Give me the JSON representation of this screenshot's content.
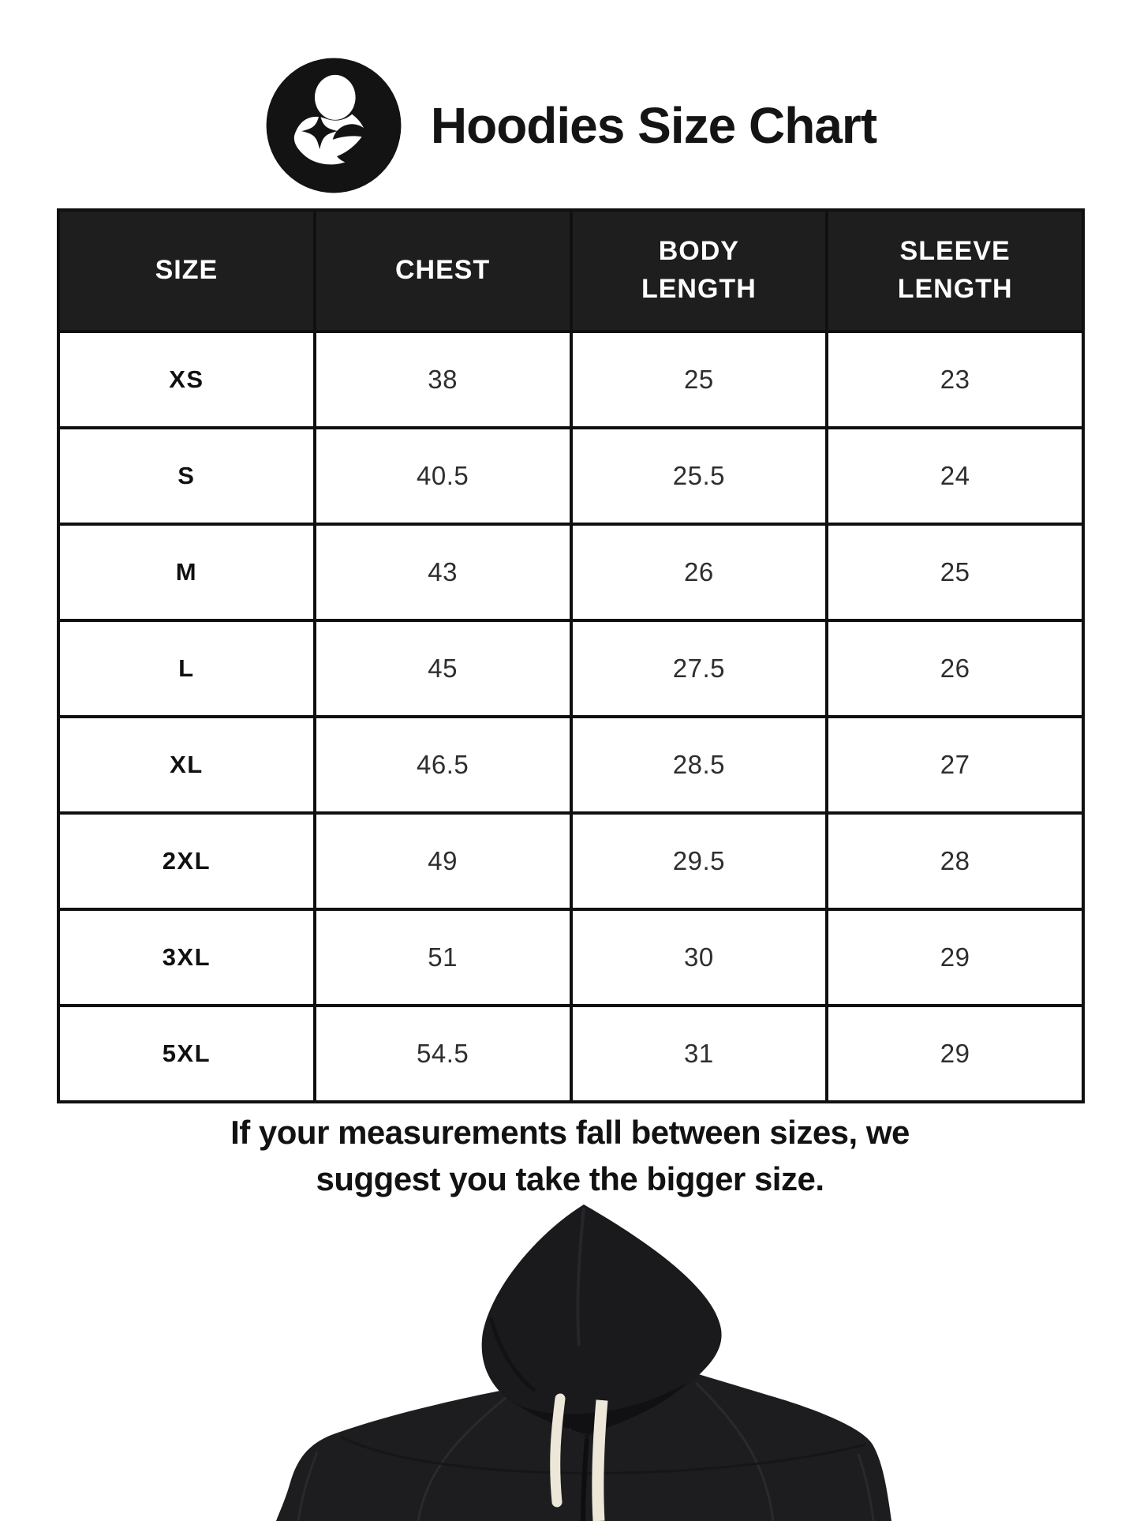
{
  "page": {
    "background": "#ffffff"
  },
  "header": {
    "title": "Hoodies Size Chart",
    "logo_icon": "person-cradling-star-icon",
    "logo_color": "#131313"
  },
  "table": {
    "header_bg": "#1e1e1e",
    "header_text_color": "#ffffff",
    "border_color": "#101010",
    "columns": [
      {
        "key": "size",
        "label": "SIZE"
      },
      {
        "key": "chest",
        "label": "CHEST"
      },
      {
        "key": "body_length",
        "label": "BODY LENGTH"
      },
      {
        "key": "sleeve_length",
        "label": "SLEEVE LENGTH"
      }
    ],
    "rows": [
      {
        "size": "XS",
        "chest": "38",
        "body_length": "25",
        "sleeve_length": "23"
      },
      {
        "size": "S",
        "chest": "40.5",
        "body_length": "25.5",
        "sleeve_length": "24"
      },
      {
        "size": "M",
        "chest": "43",
        "body_length": "26",
        "sleeve_length": "25"
      },
      {
        "size": "L",
        "chest": "45",
        "body_length": "27.5",
        "sleeve_length": "26"
      },
      {
        "size": "XL",
        "chest": "46.5",
        "body_length": "28.5",
        "sleeve_length": "27"
      },
      {
        "size": "2XL",
        "chest": "49",
        "body_length": "29.5",
        "sleeve_length": "28"
      },
      {
        "size": "3XL",
        "chest": "51",
        "body_length": "30",
        "sleeve_length": "29"
      },
      {
        "size": "5XL",
        "chest": "54.5",
        "body_length": "31",
        "sleeve_length": "29"
      }
    ]
  },
  "note": {
    "line1": "If your measurements fall between sizes, we",
    "line2": "suggest you take the bigger size."
  },
  "product_image": {
    "description": "black pullover hoodie with cream drawstrings and neck label, cropped at bottom",
    "hoodie_color": "#1d1d1f",
    "drawstring_color": "#ece7d8",
    "label_color": "#e9e4d4"
  }
}
